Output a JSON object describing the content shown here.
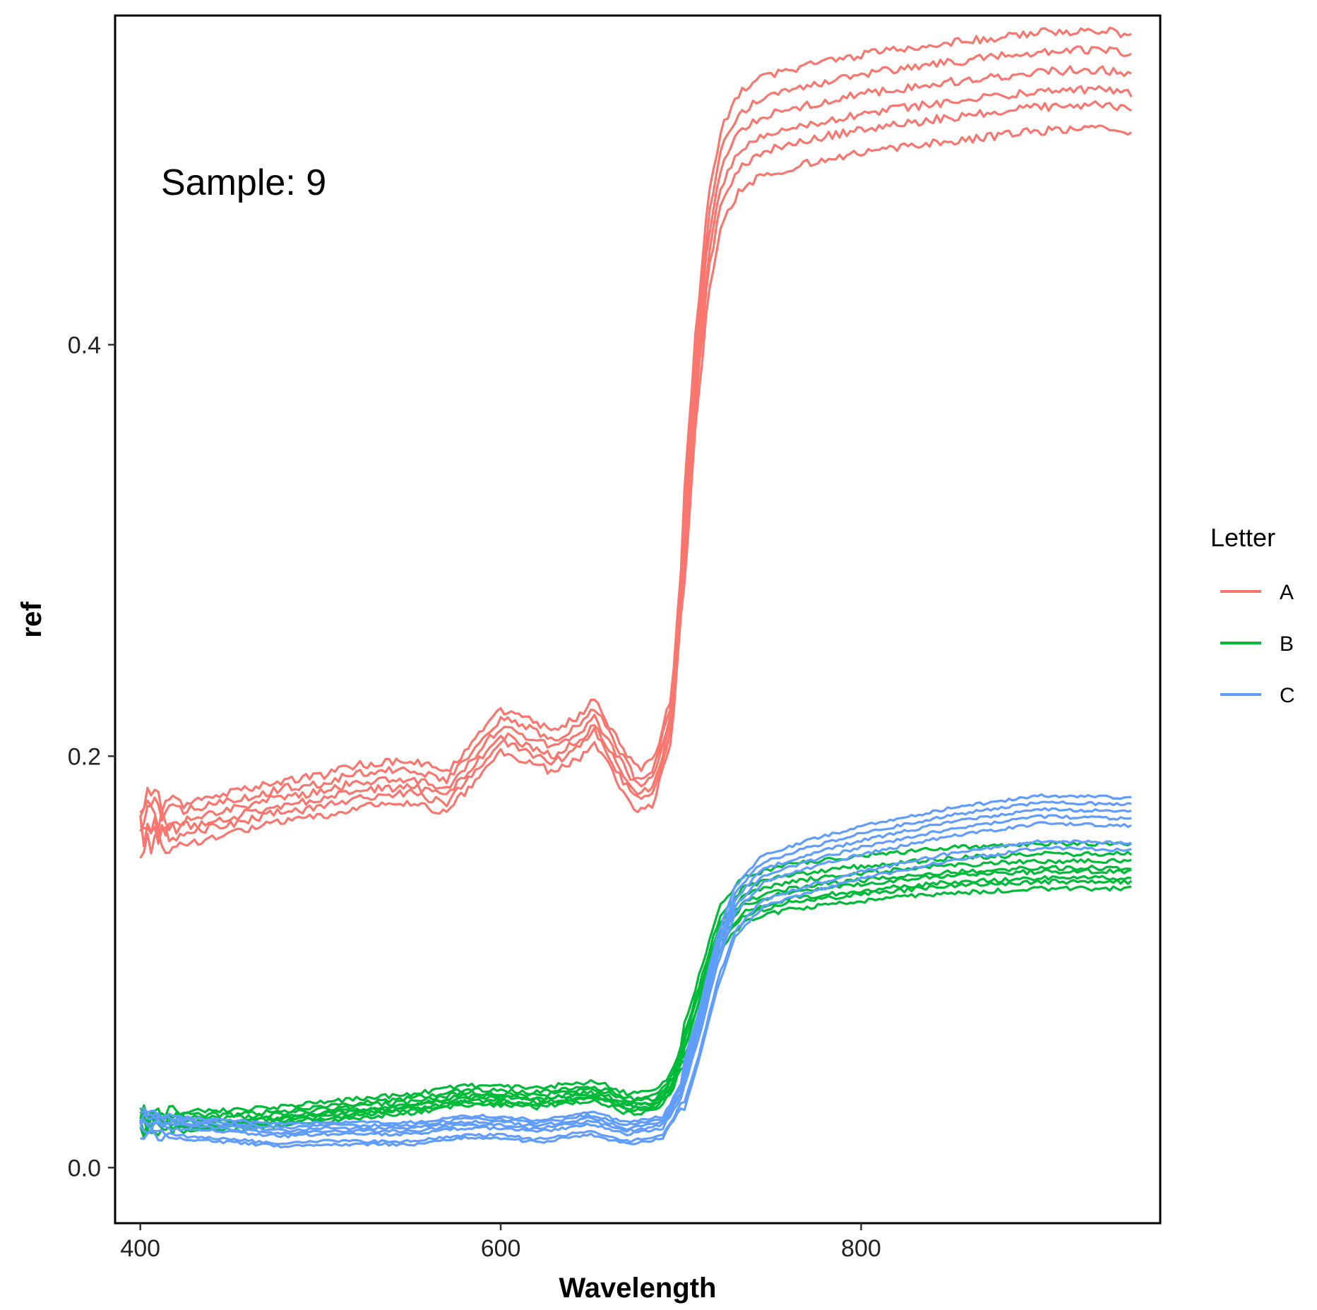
{
  "chart_data": {
    "type": "line",
    "title": "",
    "xlabel": "Wavelength",
    "ylabel": "ref",
    "xlim": [
      386,
      966
    ],
    "ylim": [
      -0.027,
      0.56
    ],
    "x_ticks": [
      {
        "value": 400,
        "label": "400"
      },
      {
        "value": 600,
        "label": "600"
      },
      {
        "value": 800,
        "label": "800"
      }
    ],
    "y_ticks": [
      {
        "value": 0.0,
        "label": "0.0"
      },
      {
        "value": 0.2,
        "label": "0.2"
      },
      {
        "value": 0.4,
        "label": "0.4"
      }
    ],
    "grid": false,
    "legend": {
      "title": "Letter",
      "placement": "right",
      "entries": [
        {
          "label": "A",
          "color": "#F8766D"
        },
        {
          "label": "B",
          "color": "#00BA38"
        },
        {
          "label": "C",
          "color": "#619CFF"
        }
      ]
    },
    "annotation": {
      "text": "Sample: 9",
      "x": 400,
      "y": 0.487
    },
    "series": [
      {
        "group": "A",
        "color": "#F8766D",
        "replicates": 6,
        "offsets": [
          -0.012,
          -0.006,
          -0.002,
          0.003,
          0.008,
          0.013
        ],
        "noise": 0.004,
        "points": [
          [
            400,
            0.168
          ],
          [
            420,
            0.166
          ],
          [
            450,
            0.172
          ],
          [
            480,
            0.178
          ],
          [
            500,
            0.18
          ],
          [
            520,
            0.185
          ],
          [
            550,
            0.187
          ],
          [
            570,
            0.182
          ],
          [
            585,
            0.197
          ],
          [
            600,
            0.212
          ],
          [
            615,
            0.207
          ],
          [
            630,
            0.202
          ],
          [
            645,
            0.21
          ],
          [
            652,
            0.217
          ],
          [
            665,
            0.197
          ],
          [
            675,
            0.183
          ],
          [
            685,
            0.187
          ],
          [
            695,
            0.22
          ],
          [
            700,
            0.28
          ],
          [
            708,
            0.38
          ],
          [
            715,
            0.445
          ],
          [
            722,
            0.48
          ],
          [
            732,
            0.497
          ],
          [
            745,
            0.505
          ],
          [
            770,
            0.511
          ],
          [
            800,
            0.516
          ],
          [
            850,
            0.522
          ],
          [
            900,
            0.527
          ],
          [
            930,
            0.528
          ],
          [
            950,
            0.526
          ]
        ]
      },
      {
        "group": "B",
        "color": "#00BA38",
        "replicates": 8,
        "offsets": [
          -0.005,
          -0.003,
          -0.002,
          0.0,
          0.001,
          0.003,
          0.005,
          0.008
        ],
        "noise": 0.0022,
        "points": [
          [
            400,
            0.022
          ],
          [
            420,
            0.022
          ],
          [
            450,
            0.022
          ],
          [
            480,
            0.024
          ],
          [
            500,
            0.026
          ],
          [
            550,
            0.03
          ],
          [
            580,
            0.034
          ],
          [
            600,
            0.034
          ],
          [
            620,
            0.033
          ],
          [
            650,
            0.036
          ],
          [
            660,
            0.034
          ],
          [
            670,
            0.03
          ],
          [
            685,
            0.031
          ],
          [
            695,
            0.04
          ],
          [
            705,
            0.065
          ],
          [
            715,
            0.095
          ],
          [
            722,
            0.115
          ],
          [
            735,
            0.128
          ],
          [
            760,
            0.134
          ],
          [
            800,
            0.138
          ],
          [
            850,
            0.142
          ],
          [
            900,
            0.144
          ],
          [
            950,
            0.144
          ]
        ]
      },
      {
        "group": "C",
        "color": "#619CFF",
        "replicates": 7,
        "offsets": [
          -0.008,
          -0.006,
          -0.001,
          0.001,
          0.003,
          0.005,
          0.007
        ],
        "noise": 0.0015,
        "points": [
          [
            400,
            0.022
          ],
          [
            420,
            0.02
          ],
          [
            450,
            0.018
          ],
          [
            480,
            0.016
          ],
          [
            500,
            0.017
          ],
          [
            550,
            0.017
          ],
          [
            580,
            0.02
          ],
          [
            600,
            0.02
          ],
          [
            620,
            0.018
          ],
          [
            650,
            0.022
          ],
          [
            670,
            0.017
          ],
          [
            690,
            0.02
          ],
          [
            700,
            0.035
          ],
          [
            710,
            0.065
          ],
          [
            720,
            0.1
          ],
          [
            730,
            0.125
          ],
          [
            745,
            0.14
          ],
          [
            770,
            0.147
          ],
          [
            800,
            0.154
          ],
          [
            850,
            0.163
          ],
          [
            900,
            0.169
          ],
          [
            950,
            0.168
          ]
        ]
      }
    ]
  }
}
